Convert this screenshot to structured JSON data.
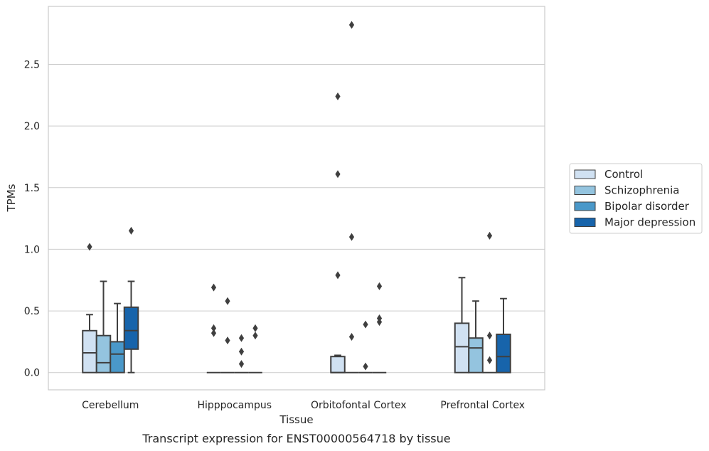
{
  "chart_data": {
    "type": "box",
    "xlabel": "Tissue",
    "ylabel": "TPMs",
    "caption": "Transcript expression for ENST00000564718 by tissue",
    "categories": [
      "Cerebellum",
      "Hipppocampus",
      "Orbitofontal Cortex",
      "Prefrontal Cortex"
    ],
    "yticks": [
      0.0,
      0.5,
      1.0,
      1.5,
      2.0,
      2.5
    ],
    "ytick_labels": [
      "0.0",
      "0.5",
      "1.0",
      "1.5",
      "2.0",
      "2.5"
    ],
    "ylim": [
      -0.14,
      2.97
    ],
    "grid": "horizontal",
    "legend_position": "right",
    "series": [
      {
        "name": "Control",
        "color": "#d0e1f2",
        "boxes": [
          {
            "q1": 0.0,
            "median": 0.16,
            "q3": 0.34,
            "whislo": 0.0,
            "whishi": 0.47,
            "fliers": [
              1.02
            ]
          },
          {
            "q1": 0.0,
            "median": 0.0,
            "q3": 0.0,
            "whislo": 0.0,
            "whishi": 0.0,
            "fliers": [
              0.69,
              0.36,
              0.32
            ]
          },
          {
            "q1": 0.0,
            "median": 0.0,
            "q3": 0.13,
            "whislo": 0.0,
            "whishi": 0.14,
            "fliers": [
              2.24,
              1.61,
              0.79
            ]
          },
          {
            "q1": 0.0,
            "median": 0.21,
            "q3": 0.4,
            "whislo": 0.0,
            "whishi": 0.77,
            "fliers": []
          }
        ]
      },
      {
        "name": "Schizophrenia",
        "color": "#94c4df",
        "boxes": [
          {
            "q1": 0.0,
            "median": 0.08,
            "q3": 0.3,
            "whislo": 0.0,
            "whishi": 0.74,
            "fliers": []
          },
          {
            "q1": 0.0,
            "median": 0.0,
            "q3": 0.0,
            "whislo": 0.0,
            "whishi": 0.0,
            "fliers": [
              0.58,
              0.26
            ]
          },
          {
            "q1": 0.0,
            "median": 0.0,
            "q3": 0.0,
            "whislo": 0.0,
            "whishi": 0.0,
            "fliers": [
              2.82,
              1.1,
              0.29
            ]
          },
          {
            "q1": 0.0,
            "median": 0.2,
            "q3": 0.28,
            "whislo": 0.0,
            "whishi": 0.58,
            "fliers": []
          }
        ]
      },
      {
        "name": "Bipolar disorder",
        "color": "#4a98c9",
        "boxes": [
          {
            "q1": 0.0,
            "median": 0.15,
            "q3": 0.25,
            "whislo": 0.0,
            "whishi": 0.56,
            "fliers": []
          },
          {
            "q1": 0.0,
            "median": 0.0,
            "q3": 0.0,
            "whislo": 0.0,
            "whishi": 0.0,
            "fliers": [
              0.28,
              0.17,
              0.07
            ]
          },
          {
            "q1": 0.0,
            "median": 0.0,
            "q3": 0.0,
            "whislo": 0.0,
            "whishi": 0.0,
            "fliers": [
              0.39,
              0.05
            ]
          },
          {
            "q1": 0.0,
            "median": 0.0,
            "q3": 0.0,
            "whislo": 0.0,
            "whishi": 0.0,
            "fliers": [
              1.11,
              0.3,
              0.1
            ]
          }
        ]
      },
      {
        "name": "Major depression",
        "color": "#1764ab",
        "boxes": [
          {
            "q1": 0.19,
            "median": 0.34,
            "q3": 0.53,
            "whislo": 0.0,
            "whishi": 0.74,
            "fliers": [
              1.15
            ]
          },
          {
            "q1": 0.0,
            "median": 0.0,
            "q3": 0.0,
            "whislo": 0.0,
            "whishi": 0.0,
            "fliers": [
              0.36,
              0.3
            ]
          },
          {
            "q1": 0.0,
            "median": 0.0,
            "q3": 0.0,
            "whislo": 0.0,
            "whishi": 0.0,
            "fliers": [
              0.7,
              0.44,
              0.41
            ]
          },
          {
            "q1": 0.0,
            "median": 0.13,
            "q3": 0.31,
            "whislo": 0.0,
            "whishi": 0.6,
            "fliers": []
          }
        ]
      }
    ]
  }
}
